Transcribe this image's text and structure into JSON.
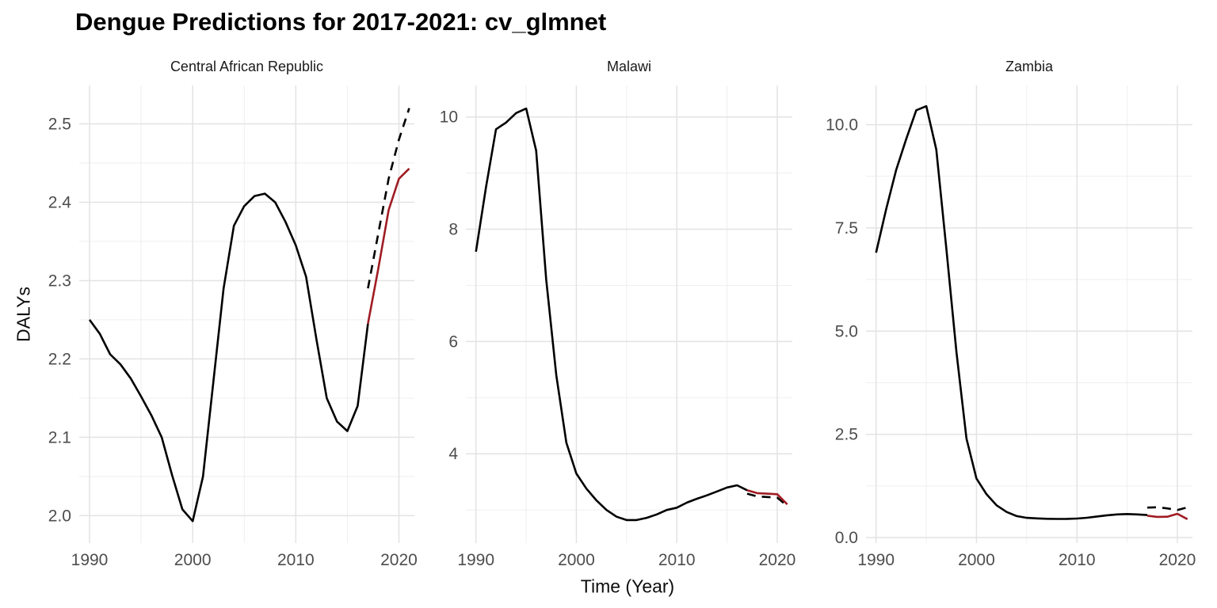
{
  "title": "Dengue Predictions for 2017-2021: cv_glmnet",
  "chart_data": {
    "type": "line",
    "title": "Dengue Predictions for 2017-2021: cv_glmnet",
    "xlabel": "Time (Year)",
    "ylabel": "DALYs",
    "legend": "none",
    "grid": "major-and-minor-light-gray",
    "background": "#ffffff",
    "colors": {
      "observed": "#000000",
      "actual_2017_2021": "#000000",
      "predicted_2017_2021": "#A01C23"
    },
    "line_styles": {
      "observed": "solid",
      "actual_2017_2021": "dashed",
      "predicted_2017_2021": "solid"
    },
    "x": {
      "lim": [
        1989,
        2021.5
      ],
      "major_ticks": [
        1990,
        2000,
        2010,
        2020
      ],
      "major_tick_labels": [
        "1990",
        "2000",
        "2010",
        "2020"
      ],
      "minor_ticks": [
        1995,
        2005,
        2015
      ]
    },
    "panels": [
      {
        "title": "Central African Republic",
        "ylim": [
          1.965,
          2.549
        ],
        "y_major_ticks": [
          2.0,
          2.1,
          2.2,
          2.3,
          2.4,
          2.5
        ],
        "y_tick_labels": [
          "2.0",
          "2.1",
          "2.2",
          "2.3",
          "2.4",
          "2.5"
        ],
        "y_minor_ticks": [
          2.05,
          2.15,
          2.25,
          2.35,
          2.45,
          2.55
        ],
        "series": {
          "observed": {
            "years": [
              1990,
              1991,
              1992,
              1993,
              1994,
              1995,
              1996,
              1997,
              1998,
              1999,
              2000,
              2001,
              2002,
              2003,
              2004,
              2005,
              2006,
              2007,
              2008,
              2009,
              2010,
              2011,
              2012,
              2013,
              2014,
              2015,
              2016,
              2017
            ],
            "values": [
              2.25,
              2.232,
              2.206,
              2.193,
              2.175,
              2.152,
              2.128,
              2.1,
              2.052,
              2.008,
              1.993,
              2.05,
              2.17,
              2.29,
              2.37,
              2.395,
              2.408,
              2.411,
              2.4,
              2.375,
              2.345,
              2.305,
              2.225,
              2.15,
              2.12,
              2.108,
              2.14,
              2.245
            ]
          },
          "predicted_2017_2021": {
            "years": [
              2017,
              2018,
              2019,
              2020,
              2021
            ],
            "values": [
              2.245,
              2.315,
              2.39,
              2.43,
              2.443
            ]
          },
          "actual_2017_2021": {
            "years": [
              2017,
              2018,
              2019,
              2020,
              2021
            ],
            "values": [
              2.29,
              2.36,
              2.43,
              2.48,
              2.52
            ]
          }
        }
      },
      {
        "title": "Malawi",
        "ylim": [
          2.41,
          10.56
        ],
        "y_major_ticks": [
          4,
          6,
          8,
          10
        ],
        "y_tick_labels": [
          "4",
          "6",
          "8",
          "10"
        ],
        "y_minor_ticks": [
          3,
          5,
          7,
          9
        ],
        "series": {
          "observed": {
            "years": [
              1990,
              1991,
              1992,
              1993,
              1994,
              1995,
              1996,
              1997,
              1998,
              1999,
              2000,
              2001,
              2002,
              2003,
              2004,
              2005,
              2006,
              2007,
              2008,
              2009,
              2010,
              2011,
              2012,
              2013,
              2014,
              2015,
              2016,
              2017
            ],
            "values": [
              7.6,
              8.75,
              9.78,
              9.9,
              10.07,
              10.15,
              9.4,
              7.1,
              5.4,
              4.2,
              3.65,
              3.38,
              3.17,
              3.0,
              2.88,
              2.82,
              2.82,
              2.86,
              2.92,
              3.0,
              3.04,
              3.13,
              3.2,
              3.26,
              3.33,
              3.4,
              3.44,
              3.35
            ]
          },
          "predicted_2017_2021": {
            "years": [
              2017,
              2018,
              2019,
              2020,
              2021
            ],
            "values": [
              3.35,
              3.3,
              3.29,
              3.28,
              3.1
            ]
          },
          "actual_2017_2021": {
            "years": [
              2017,
              2018,
              2019,
              2020,
              2021
            ],
            "values": [
              3.29,
              3.24,
              3.23,
              3.22,
              3.07
            ]
          }
        }
      },
      {
        "title": "Zambia",
        "ylim": [
          -0.134,
          10.95
        ],
        "y_major_ticks": [
          0.0,
          2.5,
          5.0,
          7.5,
          10.0
        ],
        "y_tick_labels": [
          "0.0",
          "2.5",
          "5.0",
          "7.5",
          "10.0"
        ],
        "y_minor_ticks": [
          1.25,
          3.75,
          6.25,
          8.75
        ],
        "series": {
          "observed": {
            "years": [
              1990,
              1991,
              1992,
              1993,
              1994,
              1995,
              1996,
              1997,
              1998,
              1999,
              2000,
              2001,
              2002,
              2003,
              2004,
              2005,
              2006,
              2007,
              2008,
              2009,
              2010,
              2011,
              2012,
              2013,
              2014,
              2015,
              2016,
              2017
            ],
            "values": [
              6.9,
              7.95,
              8.9,
              9.65,
              10.35,
              10.45,
              9.4,
              7.0,
              4.5,
              2.4,
              1.43,
              1.05,
              0.78,
              0.62,
              0.52,
              0.478,
              0.465,
              0.455,
              0.45,
              0.452,
              0.46,
              0.48,
              0.51,
              0.54,
              0.56,
              0.57,
              0.56,
              0.545
            ]
          },
          "predicted_2017_2021": {
            "years": [
              2017,
              2018,
              2019,
              2020,
              2021
            ],
            "values": [
              0.53,
              0.5,
              0.505,
              0.575,
              0.445
            ]
          },
          "actual_2017_2021": {
            "years": [
              2017,
              2018,
              2019,
              2020,
              2021
            ],
            "values": [
              0.725,
              0.735,
              0.705,
              0.665,
              0.73
            ]
          }
        }
      }
    ]
  }
}
